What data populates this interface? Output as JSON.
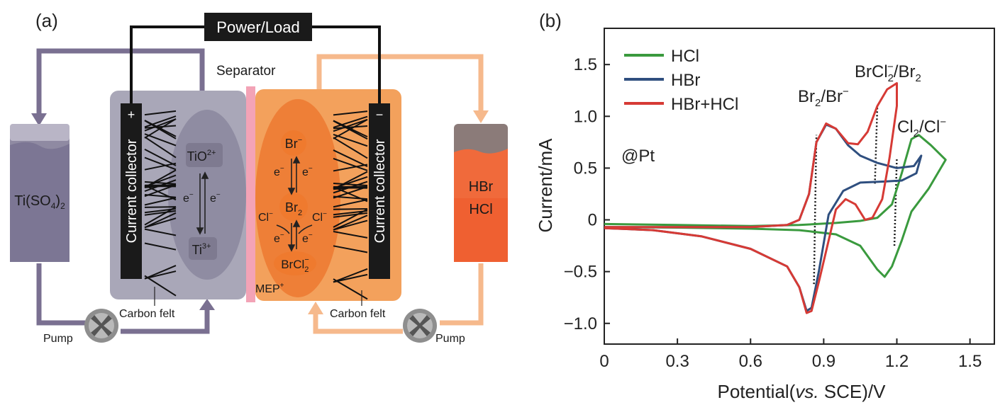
{
  "panel_a": {
    "label": "(a)",
    "power_load": "Power/Load",
    "separator": "Separator",
    "membrane": "MEP",
    "membrane_sup": "+",
    "left_tank": {
      "main": "Ti(SO",
      "sub": "4",
      "end": ")",
      "sub2": "2"
    },
    "right_tank": [
      "HBr",
      "HCl"
    ],
    "left_collector": "Current collector",
    "right_collector": "Current collector",
    "left_sign": "+",
    "right_sign": "−",
    "carbon_felt_left": "Carbon felt",
    "carbon_felt_right": "Carbon felt",
    "pump_left": "Pump",
    "pump_right": "Pump",
    "left_species": {
      "top": "TiO",
      "top_sup": "2+",
      "bottom": "Ti",
      "bottom_sup": "3+",
      "e": "e",
      "e_sup": "−"
    },
    "right_species": {
      "br_minus": "Br",
      "br_minus_sup": "−",
      "br2": "Br",
      "br2_sub": "2",
      "brcl2": "BrCl",
      "brcl2_sub": "2",
      "brcl2_sup": "−",
      "cl": "Cl",
      "cl_sup": "−",
      "e": "e",
      "e_sup": "−"
    },
    "colors": {
      "left_cell": "#a9a7b8",
      "left_pipe": "#7a7091",
      "right_cell": "#f3a15c",
      "right_pipe": "#f6b98c",
      "separator": "#f3a3b6"
    }
  },
  "panel_b": {
    "label": "(b)",
    "annotation_pt": "@Pt",
    "peak_labels": {
      "br": {
        "a": "Br",
        "a_sub": "2",
        "b": "/Br",
        "b_sup": "−"
      },
      "brcl": {
        "a": "BrCl",
        "a_sub": "2",
        "a_sup": "−",
        "b": "/Br",
        "b_sub": "2"
      },
      "cl": {
        "a": "Cl",
        "a_sub": "2",
        "b": "/Cl",
        "b_sup": "−"
      }
    }
  },
  "chart_data": {
    "type": "line",
    "title": "",
    "xlabel_parts": [
      "Potential(",
      "vs.",
      " SCE)/V"
    ],
    "ylabel": "Current/mA",
    "xlim": [
      0,
      1.6
    ],
    "ylim": [
      -1.2,
      1.85
    ],
    "xticks": [
      0,
      0.3,
      0.6,
      0.9,
      1.2,
      1.5
    ],
    "xtick_labels": [
      "0",
      "0.3",
      "0.6",
      "0.9",
      "1.2",
      "1.5"
    ],
    "yticks": [
      -1.0,
      -0.5,
      0,
      0.5,
      1.0,
      1.5
    ],
    "ytick_labels": [
      "−1.0",
      "−0.5",
      "0",
      "0.5",
      "1.0",
      "1.5"
    ],
    "legend_position": "top-left",
    "series": [
      {
        "name": "HCl",
        "color": "#3a9a3e",
        "points": [
          [
            0,
            -0.04
          ],
          [
            0.3,
            -0.05
          ],
          [
            0.6,
            -0.06
          ],
          [
            0.8,
            -0.05
          ],
          [
            0.95,
            -0.03
          ],
          [
            1.05,
            -0.01
          ],
          [
            1.12,
            0.02
          ],
          [
            1.18,
            0.15
          ],
          [
            1.22,
            0.45
          ],
          [
            1.26,
            0.78
          ],
          [
            1.29,
            0.82
          ],
          [
            1.34,
            0.72
          ],
          [
            1.4,
            0.58
          ],
          [
            1.33,
            0.3
          ],
          [
            1.26,
            0.08
          ],
          [
            1.22,
            -0.2
          ],
          [
            1.18,
            -0.45
          ],
          [
            1.15,
            -0.55
          ],
          [
            1.12,
            -0.48
          ],
          [
            1.05,
            -0.25
          ],
          [
            0.95,
            -0.14
          ],
          [
            0.8,
            -0.1
          ],
          [
            0.6,
            -0.085
          ],
          [
            0.3,
            -0.075
          ],
          [
            0,
            -0.07
          ]
        ]
      },
      {
        "name": "HBr",
        "color": "#2f4f7f",
        "points": [
          [
            0,
            -0.07
          ],
          [
            0.3,
            -0.07
          ],
          [
            0.6,
            -0.07
          ],
          [
            0.75,
            -0.05
          ],
          [
            0.8,
            0.0
          ],
          [
            0.84,
            0.25
          ],
          [
            0.87,
            0.75
          ],
          [
            0.91,
            0.92
          ],
          [
            0.95,
            0.88
          ],
          [
            1.0,
            0.72
          ],
          [
            1.05,
            0.62
          ],
          [
            1.12,
            0.55
          ],
          [
            1.2,
            0.5
          ],
          [
            1.27,
            0.52
          ],
          [
            1.3,
            0.62
          ],
          [
            1.28,
            0.45
          ],
          [
            1.22,
            0.38
          ],
          [
            1.15,
            0.37
          ],
          [
            1.05,
            0.36
          ],
          [
            0.98,
            0.28
          ],
          [
            0.92,
            0.05
          ],
          [
            0.88,
            -0.5
          ],
          [
            0.85,
            -0.85
          ],
          [
            0.83,
            -0.88
          ],
          [
            0.8,
            -0.65
          ],
          [
            0.75,
            -0.45
          ],
          [
            0.6,
            -0.28
          ],
          [
            0.4,
            -0.16
          ],
          [
            0.2,
            -0.1
          ],
          [
            0,
            -0.08
          ]
        ]
      },
      {
        "name": "HBr+HCl",
        "color": "#d63a35",
        "points": [
          [
            0,
            -0.07
          ],
          [
            0.3,
            -0.07
          ],
          [
            0.6,
            -0.07
          ],
          [
            0.75,
            -0.05
          ],
          [
            0.8,
            0.0
          ],
          [
            0.84,
            0.25
          ],
          [
            0.87,
            0.75
          ],
          [
            0.91,
            0.93
          ],
          [
            0.95,
            0.88
          ],
          [
            1.0,
            0.74
          ],
          [
            1.04,
            0.73
          ],
          [
            1.08,
            0.85
          ],
          [
            1.12,
            1.1
          ],
          [
            1.16,
            1.26
          ],
          [
            1.2,
            1.32
          ],
          [
            1.2,
            1.1
          ],
          [
            1.17,
            0.6
          ],
          [
            1.14,
            0.2
          ],
          [
            1.1,
            0.02
          ],
          [
            1.07,
            0.0
          ],
          [
            1.03,
            0.15
          ],
          [
            0.99,
            0.2
          ],
          [
            0.95,
            0.1
          ],
          [
            0.92,
            -0.2
          ],
          [
            0.88,
            -0.6
          ],
          [
            0.85,
            -0.88
          ],
          [
            0.83,
            -0.9
          ],
          [
            0.8,
            -0.65
          ],
          [
            0.75,
            -0.45
          ],
          [
            0.6,
            -0.28
          ],
          [
            0.4,
            -0.16
          ],
          [
            0.2,
            -0.1
          ],
          [
            0,
            -0.08
          ]
        ]
      }
    ],
    "dotted_markers": [
      {
        "x": [
          0.86,
          0.87
        ],
        "y": [
          -0.62,
          0.82
        ]
      },
      {
        "x": [
          1.11,
          1.12
        ],
        "y": [
          0.35,
          1.1
        ]
      },
      {
        "x": [
          1.19,
          1.2
        ],
        "y": [
          -0.25,
          0.6
        ]
      }
    ]
  }
}
